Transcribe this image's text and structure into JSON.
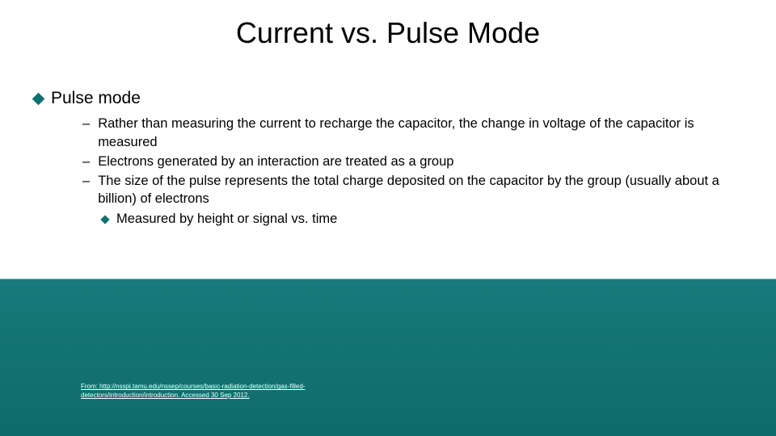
{
  "title": "Current vs. Pulse Mode",
  "mainBullet": "Pulse mode",
  "subItems": [
    "Rather than measuring the current to recharge the capacitor, the change in voltage of the capacitor is measured",
    "Electrons generated by an interaction are treated as a group",
    "The size of the pulse represents the total charge deposited on the capacitor by the group (usually about a billion) of electrons"
  ],
  "subSubItem": "Measured by height or signal vs. time",
  "citation": "From: http://nsspi.tamu.edu/nssep/courses/basic-radiation-detection/gas-filled-detectors/introduction/introduction. Accessed 30 Sep 2012.",
  "colors": {
    "accent": "#0d7070",
    "gradientTop": "#ffffff",
    "gradientBottom": "#0d6b6b"
  }
}
